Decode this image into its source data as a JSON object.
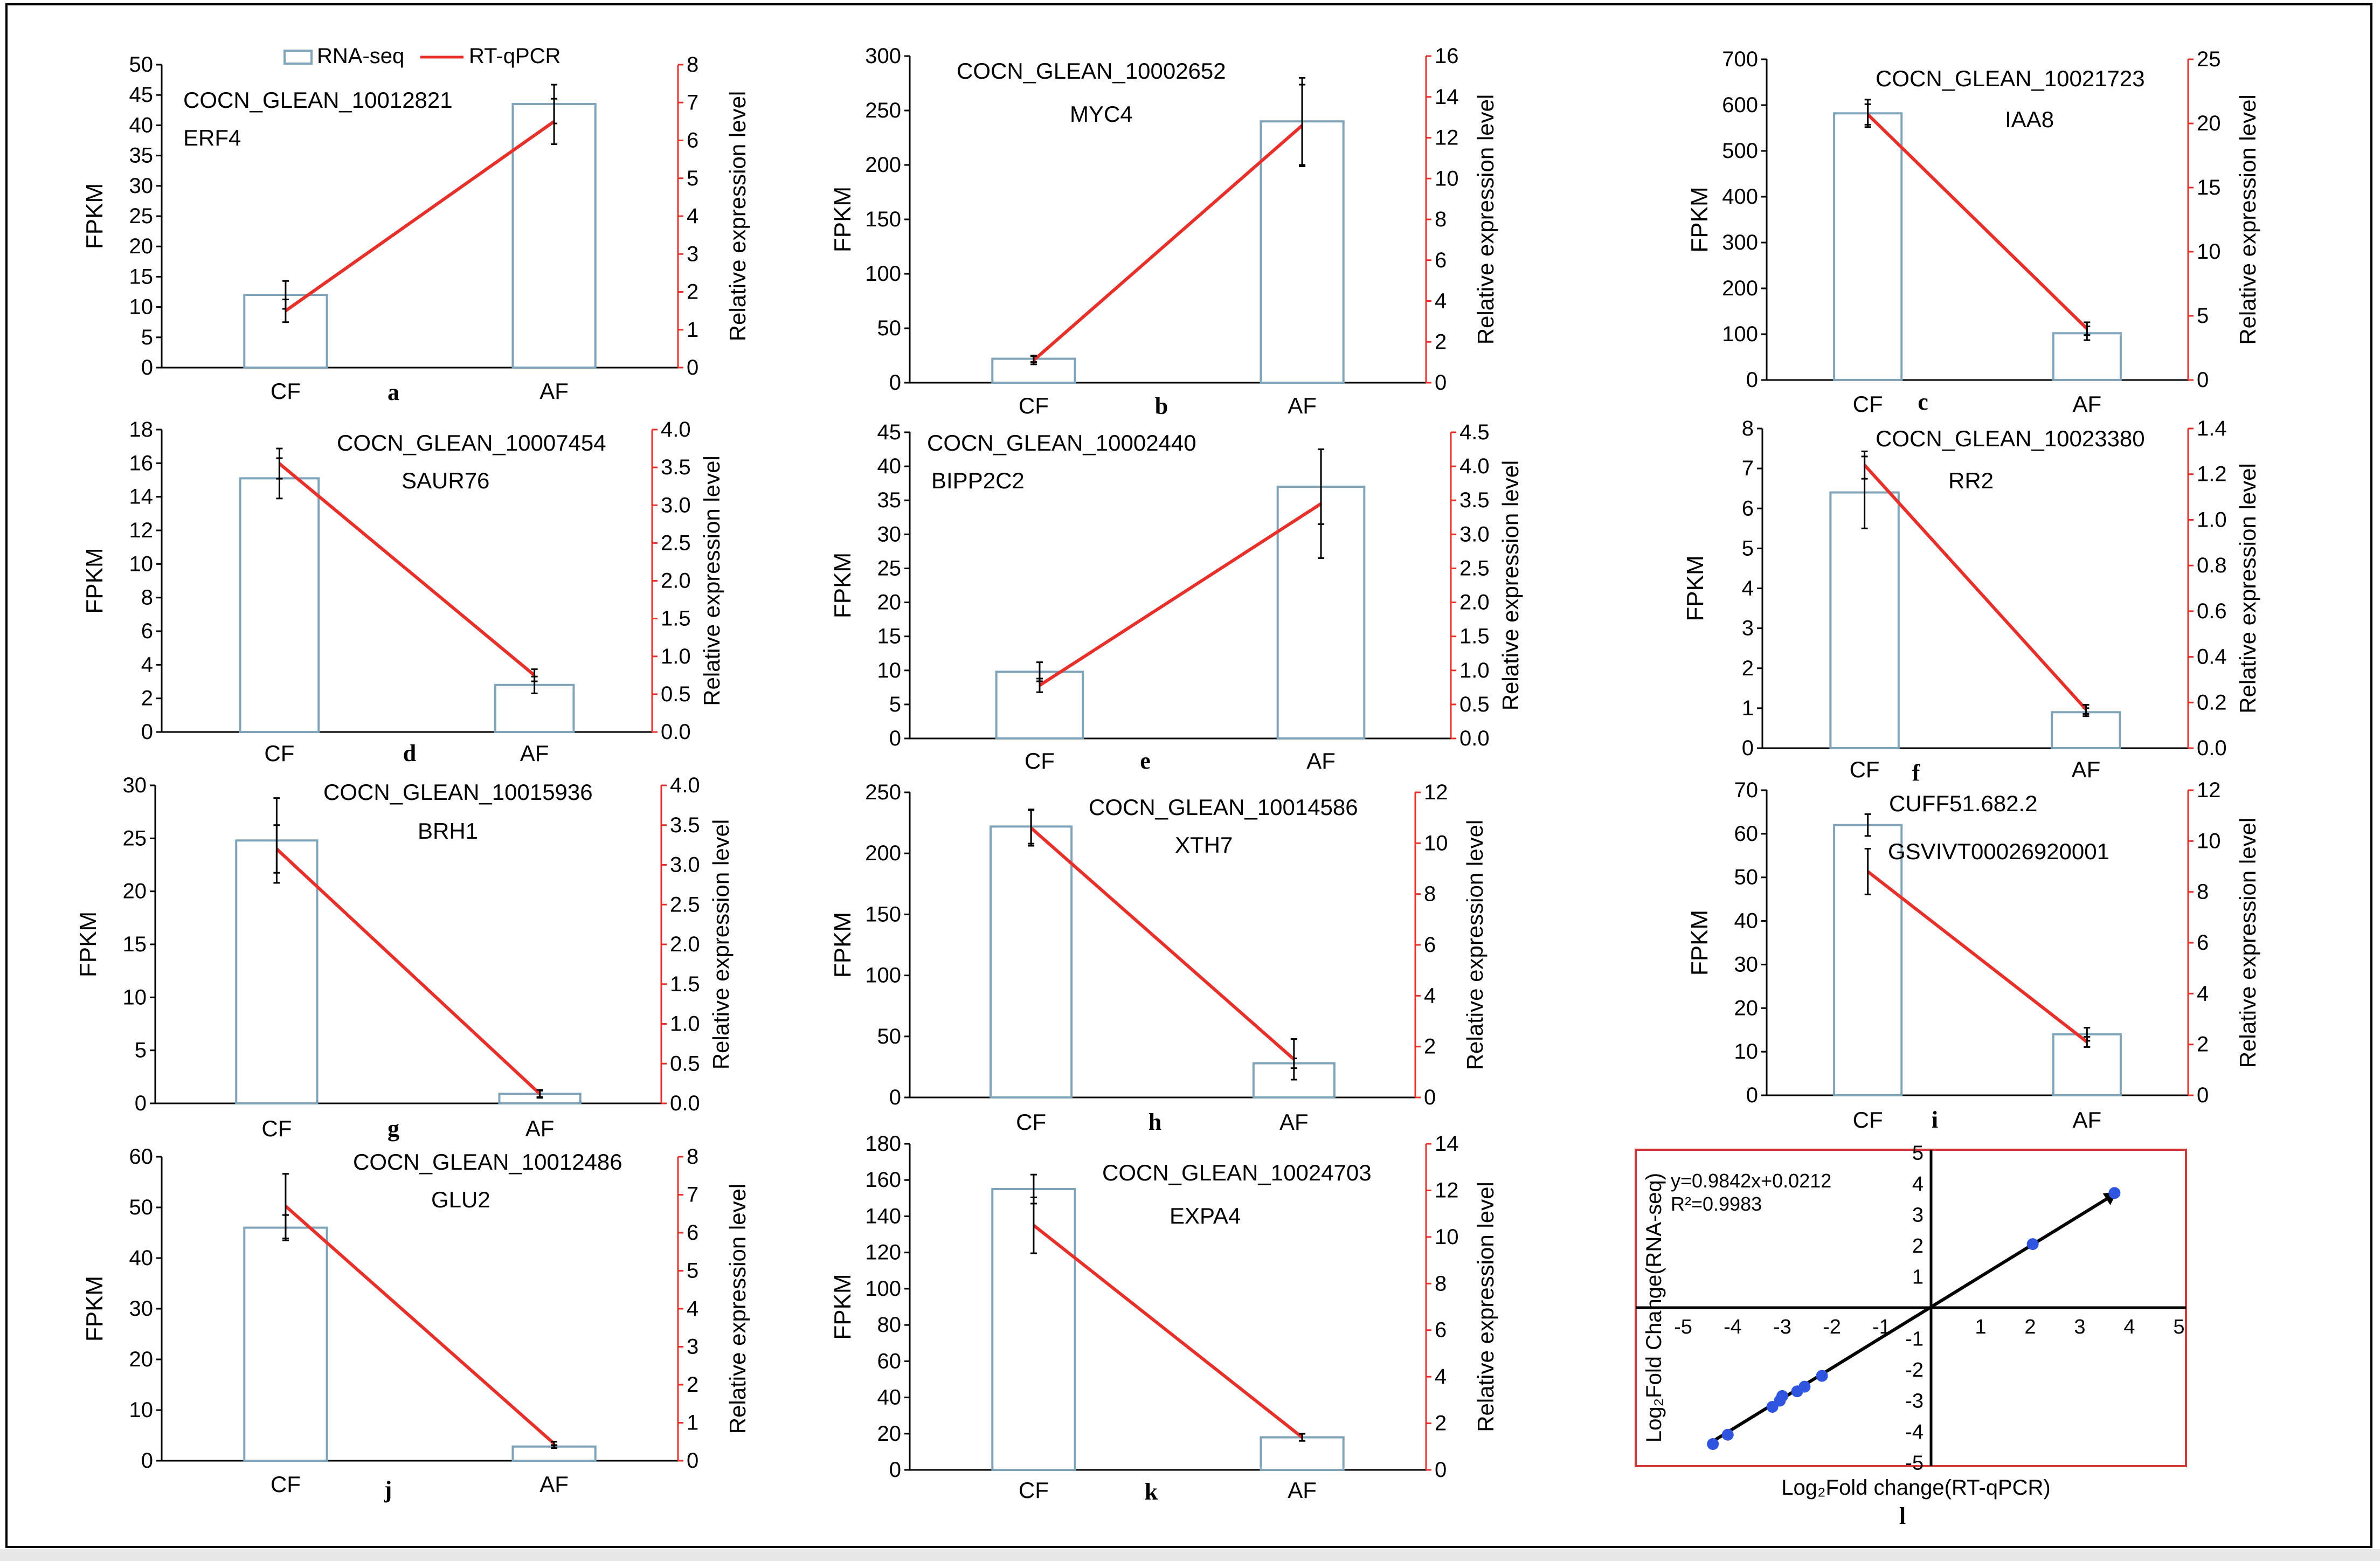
{
  "figure": {
    "legend": {
      "rnaseq_label": "RNA-seq",
      "rtqpcr_label": "RT-qPCR"
    },
    "colors": {
      "bar_stroke": "#7fa3b8",
      "line": "#e8302a",
      "axis": "#000000",
      "right_axis": "#e8302a",
      "scatter_point": "#2f55e0",
      "frame": "#d23a3a"
    }
  },
  "chart_data": [
    {
      "type": "bar",
      "panel_letter": "a",
      "gene_id": "COCN_GLEAN_10012821",
      "gene_name": "ERF4",
      "categories": [
        "CF",
        "AF"
      ],
      "ylabel": "FPKM",
      "y2label": "Relative expression level",
      "ylim": [
        0,
        50
      ],
      "yticks": [
        0,
        5,
        10,
        15,
        20,
        25,
        30,
        35,
        40,
        45,
        50
      ],
      "ytick_labels": [
        "0",
        "5",
        "10",
        "15",
        "20",
        "25",
        "30",
        "35",
        "40",
        "45",
        "50"
      ],
      "y2lim": [
        0,
        8
      ],
      "y2ticks": [
        0,
        1,
        2,
        3,
        4,
        5,
        6,
        7,
        8
      ],
      "y2tick_labels": [
        "0",
        "1",
        "2",
        "3",
        "4",
        "5",
        "6",
        "7",
        "8"
      ],
      "series": [
        {
          "name": "RNA-seq",
          "type": "bar",
          "values": [
            12,
            43.5
          ],
          "errors": [
            2.3,
            3.2
          ]
        },
        {
          "name": "RT-qPCR",
          "type": "line",
          "values": [
            1.5,
            6.5
          ],
          "errors": [
            0.3,
            0.6
          ]
        }
      ]
    },
    {
      "type": "bar",
      "panel_letter": "b",
      "gene_id": "COCN_GLEAN_10002652",
      "gene_name": "MYC4",
      "categories": [
        "CF",
        "AF"
      ],
      "ylabel": "FPKM",
      "y2label": "Relative expression level",
      "ylim": [
        0,
        300
      ],
      "yticks": [
        0,
        50,
        100,
        150,
        200,
        250,
        300
      ],
      "ytick_labels": [
        "0",
        "50",
        "100",
        "150",
        "200",
        "250",
        "300"
      ],
      "y2lim": [
        0,
        16
      ],
      "y2ticks": [
        0,
        2,
        4,
        6,
        8,
        10,
        12,
        14,
        16
      ],
      "y2tick_labels": [
        "0",
        "2",
        "4",
        "6",
        "8",
        "10",
        "12",
        "14",
        "16"
      ],
      "series": [
        {
          "name": "RNA-seq",
          "type": "bar",
          "values": [
            22,
            240
          ],
          "errors": [
            3,
            40
          ]
        },
        {
          "name": "RT-qPCR",
          "type": "line",
          "values": [
            1.1,
            12.6
          ],
          "errors": [
            0.2,
            2.0
          ]
        }
      ]
    },
    {
      "type": "bar",
      "panel_letter": "c",
      "gene_id": "COCN_GLEAN_10021723",
      "gene_name": "IAA8",
      "categories": [
        "CF",
        "AF"
      ],
      "ylabel": "FPKM",
      "y2label": "Relative expression level",
      "ylim": [
        0,
        700
      ],
      "yticks": [
        0,
        100,
        200,
        300,
        400,
        500,
        600,
        700
      ],
      "ytick_labels": [
        "0",
        "100",
        "200",
        "300",
        "400",
        "500",
        "600",
        "700"
      ],
      "y2lim": [
        0,
        25
      ],
      "y2ticks": [
        0,
        5,
        10,
        15,
        20,
        25
      ],
      "y2tick_labels": [
        "0",
        "5",
        "10",
        "15",
        "20",
        "25"
      ],
      "series": [
        {
          "name": "RNA-seq",
          "type": "bar",
          "values": [
            582,
            102
          ],
          "errors": [
            30,
            15
          ]
        },
        {
          "name": "RT-qPCR",
          "type": "line",
          "values": [
            20.7,
            4.0
          ],
          "errors": [
            0.8,
            0.5
          ]
        }
      ]
    },
    {
      "type": "bar",
      "panel_letter": "d",
      "gene_id": "COCN_GLEAN_10007454",
      "gene_name": "SAUR76",
      "categories": [
        "CF",
        "AF"
      ],
      "ylabel": "FPKM",
      "y2label": "Relative expression level",
      "ylim": [
        0,
        18
      ],
      "yticks": [
        0,
        2,
        4,
        6,
        8,
        10,
        12,
        14,
        16,
        18
      ],
      "ytick_labels": [
        "0",
        "2",
        "4",
        "6",
        "8",
        "10",
        "12",
        "14",
        "16",
        "18"
      ],
      "y2lim": [
        0,
        4
      ],
      "y2ticks": [
        0,
        0.5,
        1,
        1.5,
        2,
        2.5,
        3,
        3.5,
        4
      ],
      "y2tick_labels": [
        "0.0",
        "0.5",
        "1.0",
        "1.5",
        "2.0",
        "2.5",
        "3.0",
        "3.5",
        "4.0"
      ],
      "series": [
        {
          "name": "RNA-seq",
          "type": "bar",
          "values": [
            15.1,
            2.8
          ],
          "errors": [
            1.2,
            0.5
          ]
        },
        {
          "name": "RT-qPCR",
          "type": "line",
          "values": [
            3.55,
            0.75
          ],
          "errors": [
            0.2,
            0.08
          ]
        }
      ]
    },
    {
      "type": "bar",
      "panel_letter": "e",
      "gene_id": "COCN_GLEAN_10002440",
      "gene_name": "BIPP2C2",
      "categories": [
        "CF",
        "AF"
      ],
      "ylabel": "FPKM",
      "y2label": "Relative expression level",
      "ylim": [
        0,
        45
      ],
      "yticks": [
        0,
        5,
        10,
        15,
        20,
        25,
        30,
        35,
        40,
        45
      ],
      "ytick_labels": [
        "0",
        "5",
        "10",
        "15",
        "20",
        "25",
        "30",
        "35",
        "40",
        "45"
      ],
      "y2lim": [
        0,
        4.5
      ],
      "y2ticks": [
        0,
        0.5,
        1,
        1.5,
        2,
        2.5,
        3,
        3.5,
        4,
        4.5
      ],
      "y2tick_labels": [
        "0.0",
        "0.5",
        "1.0",
        "1.5",
        "2.0",
        "2.5",
        "3.0",
        "3.5",
        "4.0",
        "4.5"
      ],
      "series": [
        {
          "name": "RNA-seq",
          "type": "bar",
          "values": [
            9.8,
            37
          ],
          "errors": [
            1.4,
            5.5
          ]
        },
        {
          "name": "RT-qPCR",
          "type": "line",
          "values": [
            0.78,
            3.45
          ],
          "errors": [
            0.1,
            0.8
          ]
        }
      ]
    },
    {
      "type": "bar",
      "panel_letter": "f",
      "gene_id": "COCN_GLEAN_10023380",
      "gene_name": "RR2",
      "categories": [
        "CF",
        "AF"
      ],
      "ylabel": "FPKM",
      "y2label": "Relative expression level",
      "ylim": [
        0,
        8
      ],
      "yticks": [
        0,
        1,
        2,
        3,
        4,
        5,
        6,
        7,
        8
      ],
      "ytick_labels": [
        "0",
        "1",
        "2",
        "3",
        "4",
        "5",
        "6",
        "7",
        "8"
      ],
      "y2lim": [
        0,
        1.4
      ],
      "y2ticks": [
        0,
        0.2,
        0.4,
        0.6,
        0.8,
        1.0,
        1.2,
        1.4
      ],
      "y2tick_labels": [
        "0.0",
        "0.2",
        "0.4",
        "0.6",
        "0.8",
        "1.0",
        "1.2",
        "1.4"
      ],
      "series": [
        {
          "name": "RNA-seq",
          "type": "bar",
          "values": [
            6.4,
            0.9
          ],
          "errors": [
            0.9,
            0.1
          ]
        },
        {
          "name": "RT-qPCR",
          "type": "line",
          "values": [
            1.24,
            0.17
          ],
          "errors": [
            0.06,
            0.02
          ]
        }
      ]
    },
    {
      "type": "bar",
      "panel_letter": "g",
      "gene_id": "COCN_GLEAN_10015936",
      "gene_name": "BRH1",
      "categories": [
        "CF",
        "AF"
      ],
      "ylabel": "FPKM",
      "y2label": "Relative expression level",
      "ylim": [
        0,
        30
      ],
      "yticks": [
        0,
        5,
        10,
        15,
        20,
        25,
        30
      ],
      "ytick_labels": [
        "0",
        "5",
        "10",
        "15",
        "20",
        "25",
        "30"
      ],
      "y2lim": [
        0,
        4
      ],
      "y2ticks": [
        0,
        0.5,
        1,
        1.5,
        2,
        2.5,
        3,
        3.5,
        4
      ],
      "y2tick_labels": [
        "0.0",
        "0.5",
        "1.0",
        "1.5",
        "2.0",
        "2.5",
        "3.0",
        "3.5",
        "4.0"
      ],
      "series": [
        {
          "name": "RNA-seq",
          "type": "bar",
          "values": [
            24.8,
            0.9
          ],
          "errors": [
            4,
            0.3
          ]
        },
        {
          "name": "RT-qPCR",
          "type": "line",
          "values": [
            3.2,
            0.12
          ],
          "errors": [
            0.3,
            0.05
          ]
        }
      ]
    },
    {
      "type": "bar",
      "panel_letter": "h",
      "gene_id": "COCN_GLEAN_10014586",
      "gene_name": "XTH7",
      "categories": [
        "CF",
        "AF"
      ],
      "ylabel": "FPKM",
      "y2label": "Relative expression level",
      "ylim": [
        0,
        250
      ],
      "yticks": [
        0,
        50,
        100,
        150,
        200,
        250
      ],
      "ytick_labels": [
        "0",
        "50",
        "100",
        "150",
        "200",
        "250"
      ],
      "y2lim": [
        0,
        12
      ],
      "y2ticks": [
        0,
        2,
        4,
        6,
        8,
        10,
        12
      ],
      "y2tick_labels": [
        "0",
        "2",
        "4",
        "6",
        "8",
        "10",
        "12"
      ],
      "series": [
        {
          "name": "RNA-seq",
          "type": "bar",
          "values": [
            222,
            28
          ],
          "errors": [
            14,
            4
          ]
        },
        {
          "name": "RT-qPCR",
          "type": "line",
          "values": [
            10.6,
            1.5
          ],
          "errors": [
            0.7,
            0.8
          ]
        }
      ]
    },
    {
      "type": "bar",
      "panel_letter": "i",
      "gene_id": "CUFF51.682.2",
      "gene_name": "GSVIVT00026920001",
      "categories": [
        "CF",
        "AF"
      ],
      "ylabel": "FPKM",
      "y2label": "Relative expression level",
      "ylim": [
        0,
        70
      ],
      "yticks": [
        0,
        10,
        20,
        30,
        40,
        50,
        60,
        70
      ],
      "ytick_labels": [
        "0",
        "10",
        "20",
        "30",
        "40",
        "50",
        "60",
        "70"
      ],
      "y2lim": [
        0,
        12
      ],
      "y2ticks": [
        0,
        2,
        4,
        6,
        8,
        10,
        12
      ],
      "y2tick_labels": [
        "0",
        "2",
        "4",
        "6",
        "8",
        "10",
        "12"
      ],
      "series": [
        {
          "name": "RNA-seq",
          "type": "bar",
          "values": [
            62,
            14
          ],
          "errors": [
            2.5,
            1.5
          ]
        },
        {
          "name": "RT-qPCR",
          "type": "line",
          "values": [
            8.8,
            2.1
          ],
          "errors": [
            0.9,
            0.2
          ]
        }
      ]
    },
    {
      "type": "bar",
      "panel_letter": "j",
      "gene_id": "COCN_GLEAN_10012486",
      "gene_name": "GLU2",
      "categories": [
        "CF",
        "AF"
      ],
      "ylabel": "FPKM",
      "y2label": "Relative expression level",
      "ylim": [
        0,
        60
      ],
      "yticks": [
        0,
        10,
        20,
        30,
        40,
        50,
        60
      ],
      "ytick_labels": [
        "0",
        "10",
        "20",
        "30",
        "40",
        "50",
        "60"
      ],
      "y2lim": [
        0,
        8
      ],
      "y2ticks": [
        0,
        1,
        2,
        3,
        4,
        5,
        6,
        7,
        8
      ],
      "y2tick_labels": [
        "0",
        "1",
        "2",
        "3",
        "4",
        "5",
        "6",
        "7",
        "8"
      ],
      "series": [
        {
          "name": "RNA-seq",
          "type": "bar",
          "values": [
            46,
            2.8
          ],
          "errors": [
            2.5,
            0.3
          ]
        },
        {
          "name": "RT-qPCR",
          "type": "line",
          "values": [
            6.7,
            0.45
          ],
          "errors": [
            0.85,
            0.05
          ]
        }
      ]
    },
    {
      "type": "bar",
      "panel_letter": "k",
      "gene_id": "COCN_GLEAN_10024703",
      "gene_name": "EXPA4",
      "categories": [
        "CF",
        "AF"
      ],
      "ylabel": "FPKM",
      "y2label": "Relative expression level",
      "ylim": [
        0,
        180
      ],
      "yticks": [
        0,
        20,
        40,
        60,
        80,
        100,
        120,
        140,
        160,
        180
      ],
      "ytick_labels": [
        "0",
        "20",
        "40",
        "60",
        "80",
        "100",
        "120",
        "140",
        "160",
        "180"
      ],
      "y2lim": [
        0,
        14
      ],
      "y2ticks": [
        0,
        2,
        4,
        6,
        8,
        10,
        12,
        14
      ],
      "y2tick_labels": [
        "0",
        "2",
        "4",
        "6",
        "8",
        "10",
        "12",
        "14"
      ],
      "series": [
        {
          "name": "RNA-seq",
          "type": "bar",
          "values": [
            155,
            18
          ],
          "errors": [
            8,
            2
          ]
        },
        {
          "name": "RT-qPCR",
          "type": "line",
          "values": [
            10.5,
            1.4
          ],
          "errors": [
            1.2,
            0.15
          ]
        }
      ]
    },
    {
      "type": "scatter",
      "panel_letter": "l",
      "title": "",
      "xlabel": "Log₂Fold change(RT-qPCR)",
      "ylabel": "Log₂Fold Change(RNA-seq)",
      "equation": "y=0.9842x+0.0212",
      "r2": "R²=0.9983",
      "xlim": [
        -5,
        5
      ],
      "ylim": [
        -5,
        5
      ],
      "xticks": [
        -5,
        -4,
        -3,
        -2,
        -1,
        1,
        2,
        3,
        4,
        5
      ],
      "xtick_labels": [
        "-5",
        "-4",
        "-3",
        "-2",
        "-1",
        "1",
        "2",
        "3",
        "4",
        "5"
      ],
      "yticks": [
        -5,
        -4,
        -3,
        -2,
        -1,
        1,
        2,
        3,
        4,
        5
      ],
      "ytick_labels": [
        "-5",
        "-4",
        "-3",
        "-2",
        "-1",
        "1",
        "2",
        "3",
        "4",
        "5"
      ],
      "points": [
        [
          -4.4,
          -4.4
        ],
        [
          -4.1,
          -4.1
        ],
        [
          -3.2,
          -3.2
        ],
        [
          -3.05,
          -3.0
        ],
        [
          -3.0,
          -2.85
        ],
        [
          -2.7,
          -2.7
        ],
        [
          -2.55,
          -2.55
        ],
        [
          -2.2,
          -2.2
        ],
        [
          2.05,
          2.05
        ],
        [
          3.7,
          3.7
        ]
      ],
      "fit": {
        "slope": 0.9842,
        "intercept": 0.0212,
        "x_range": [
          -4.5,
          3.55
        ]
      }
    }
  ]
}
